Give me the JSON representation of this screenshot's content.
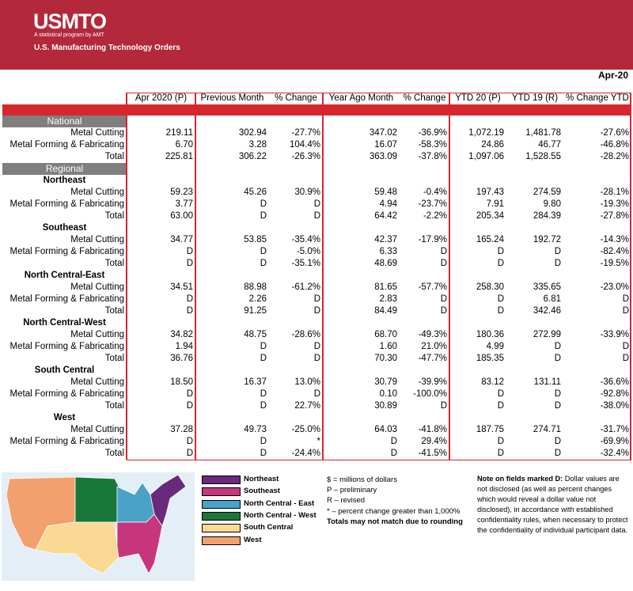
{
  "header": {
    "logo": "USMTO",
    "tagline": "A statistical program by AMT",
    "title": "U.S. Manufacturing Technology Orders"
  },
  "date": "Apr-20",
  "table": {
    "columns": [
      "Apr 2020 (P)",
      "Previous Month",
      "% Change",
      "Year Ago Month",
      "% Change",
      "YTD 20 (P)",
      "YTD 19 (R)",
      "% Change YTD"
    ],
    "national": {
      "label": "National",
      "rows": [
        {
          "label": "Metal Cutting",
          "cells": [
            "219.11",
            "302.94",
            "-27.7%",
            "347.02",
            "-36.9%",
            "1,072.19",
            "1,481.78",
            "-27.6%"
          ]
        },
        {
          "label": "Metal Forming & Fabricating",
          "cells": [
            "6.70",
            "3.28",
            "104.4%",
            "16.07",
            "-58.3%",
            "24.86",
            "46.77",
            "-46.8%"
          ]
        },
        {
          "label": "Total",
          "cells": [
            "225.81",
            "306.22",
            "-26.3%",
            "363.09",
            "-37.8%",
            "1,097.06",
            "1,528.55",
            "-28.2%"
          ]
        }
      ]
    },
    "regional": {
      "label": "Regional",
      "regions": [
        {
          "name": "Northeast",
          "rows": [
            {
              "label": "Metal Cutting",
              "cells": [
                "59.23",
                "45.26",
                "30.9%",
                "59.48",
                "-0.4%",
                "197.43",
                "274.59",
                "-28.1%"
              ]
            },
            {
              "label": "Metal Forming & Fabricating",
              "cells": [
                "3.77",
                "D",
                "D",
                "4.94",
                "-23.7%",
                "7.91",
                "9.80",
                "-19.3%"
              ]
            },
            {
              "label": "Total",
              "cells": [
                "63.00",
                "D",
                "D",
                "64.42",
                "-2.2%",
                "205.34",
                "284.39",
                "-27.8%"
              ]
            }
          ]
        },
        {
          "name": "Southeast",
          "rows": [
            {
              "label": "Metal Cutting",
              "cells": [
                "34.77",
                "53.85",
                "-35.4%",
                "42.37",
                "-17.9%",
                "165.24",
                "192.72",
                "-14.3%"
              ]
            },
            {
              "label": "Metal Forming & Fabricating",
              "cells": [
                "D",
                "D",
                "-5.0%",
                "6.33",
                "D",
                "D",
                "D",
                "-82.4%"
              ]
            },
            {
              "label": "Total",
              "cells": [
                "D",
                "D",
                "-35.1%",
                "48.69",
                "D",
                "D",
                "D",
                "-19.5%"
              ]
            }
          ]
        },
        {
          "name": "North Central-East",
          "rows": [
            {
              "label": "Metal Cutting",
              "cells": [
                "34.51",
                "88.98",
                "-61.2%",
                "81.65",
                "-57.7%",
                "258.30",
                "335.65",
                "-23.0%"
              ]
            },
            {
              "label": "Metal Forming & Fabricating",
              "cells": [
                "D",
                "2.26",
                "D",
                "2.83",
                "D",
                "D",
                "6.81",
                "D"
              ]
            },
            {
              "label": "Total",
              "cells": [
                "D",
                "91.25",
                "D",
                "84.49",
                "D",
                "D",
                "342.46",
                "D"
              ]
            }
          ]
        },
        {
          "name": "North Central-West",
          "rows": [
            {
              "label": "Metal Cutting",
              "cells": [
                "34.82",
                "48.75",
                "-28.6%",
                "68.70",
                "-49.3%",
                "180.36",
                "272.99",
                "-33.9%"
              ]
            },
            {
              "label": "Metal Forming & Fabricating",
              "cells": [
                "1.94",
                "D",
                "D",
                "1.60",
                "21.0%",
                "4.99",
                "D",
                "D"
              ]
            },
            {
              "label": "Total",
              "cells": [
                "36.76",
                "D",
                "D",
                "70.30",
                "-47.7%",
                "185.35",
                "D",
                "D"
              ]
            }
          ]
        },
        {
          "name": "South Central",
          "rows": [
            {
              "label": "Metal Cutting",
              "cells": [
                "18.50",
                "16.37",
                "13.0%",
                "30.79",
                "-39.9%",
                "83.12",
                "131.11",
                "-36.6%"
              ]
            },
            {
              "label": "Metal Forming & Fabricating",
              "cells": [
                "D",
                "D",
                "D",
                "0.10",
                "-100.0%",
                "D",
                "D",
                "-92.8%"
              ]
            },
            {
              "label": "Total",
              "cells": [
                "D",
                "D",
                "22.7%",
                "30.89",
                "D",
                "D",
                "D",
                "-38.0%"
              ]
            }
          ]
        },
        {
          "name": "West",
          "rows": [
            {
              "label": "Metal Cutting",
              "cells": [
                "37.28",
                "49.73",
                "-25.0%",
                "64.03",
                "-41.8%",
                "187.75",
                "274.71",
                "-31.7%"
              ]
            },
            {
              "label": "Metal Forming & Fabricating",
              "cells": [
                "D",
                "D",
                "*",
                "D",
                "29.4%",
                "D",
                "D",
                "-69.9%"
              ]
            },
            {
              "label": "Total",
              "cells": [
                "D",
                "D",
                "-24.4%",
                "D",
                "-41.5%",
                "D",
                "D",
                "-32.4%"
              ]
            }
          ]
        }
      ]
    }
  },
  "legend": [
    {
      "label": "Northeast",
      "color": "#6a2a7c"
    },
    {
      "label": "Southeast",
      "color": "#c7367c"
    },
    {
      "label": "North Central - East",
      "color": "#4aa2c8"
    },
    {
      "label": "North Central - West",
      "color": "#18783a"
    },
    {
      "label": "South Central",
      "color": "#f9d993"
    },
    {
      "label": "West",
      "color": "#f2a06e"
    }
  ],
  "notes": [
    "$ = millions of dollars",
    "P – preliminary",
    "R – revised",
    "* – percent change greater than 1,000%",
    "Totals may not match due to rounding"
  ],
  "disclosure": {
    "bold": "Note on fields marked D:",
    "text": " Dollar values are not disclosed (as well as percent changes which would reveal a dollar value not disclosed), in accordance with established confidentiality rules, when necessary to protect the confidentiality of individual participant data."
  }
}
